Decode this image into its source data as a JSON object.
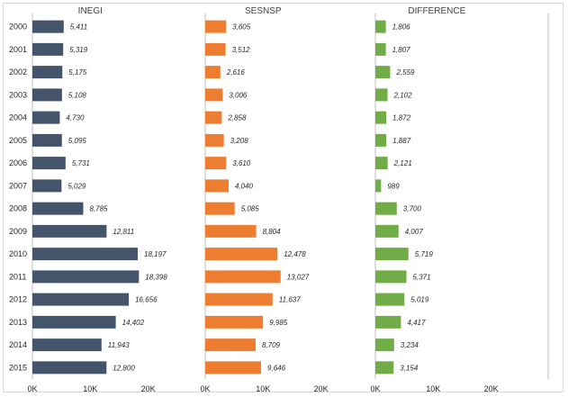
{
  "chart_data": {
    "type": "bar",
    "orientation": "horizontal",
    "categories": [
      "2000",
      "2001",
      "2002",
      "2003",
      "2004",
      "2005",
      "2006",
      "2007",
      "2008",
      "2009",
      "2010",
      "2011",
      "2012",
      "2013",
      "2014",
      "2015"
    ],
    "series": [
      {
        "name": "INEGI",
        "color": "#44546a",
        "values": [
          5411,
          5319,
          5175,
          5108,
          4730,
          5095,
          5731,
          5029,
          8785,
          12811,
          18197,
          18398,
          16656,
          14402,
          11943,
          12800
        ],
        "labels": [
          "5,411",
          "5,319",
          "5,175",
          "5,108",
          "4,730",
          "5,095",
          "5,731",
          "5,029",
          "8,785",
          "12,811",
          "18,197",
          "18,398",
          "16,656",
          "14,402",
          "11,943",
          "12,800"
        ]
      },
      {
        "name": "SESNSP",
        "color": "#ed7d31",
        "values": [
          3605,
          3512,
          2616,
          3006,
          2858,
          3208,
          3610,
          4040,
          5085,
          8804,
          12478,
          13027,
          11637,
          9985,
          8709,
          9646
        ],
        "labels": [
          "3,605",
          "3,512",
          "2,616",
          "3,006",
          "2,858",
          "3,208",
          "3,610",
          "4,040",
          "5,085",
          "8,804",
          "12,478",
          "13,027",
          "11,637",
          "9,985",
          "8,709",
          "9,646"
        ]
      },
      {
        "name": "DIFFERENCE",
        "color": "#70ad47",
        "values": [
          1806,
          1807,
          2559,
          2102,
          1872,
          1887,
          2121,
          989,
          3700,
          4007,
          5719,
          5371,
          5019,
          4417,
          3234,
          3154
        ],
        "labels": [
          "1,806",
          "1,807",
          "2,559",
          "2,102",
          "1,872",
          "1,887",
          "2,121",
          "989",
          "3,700",
          "4,007",
          "5,719",
          "5,371",
          "5,019",
          "4,417",
          "3,234",
          "3,154"
        ]
      }
    ],
    "xlim": [
      0,
      20000
    ],
    "x_ticks": [
      0,
      10000,
      20000
    ],
    "x_tick_labels": [
      "0K",
      "10K",
      "20K"
    ],
    "grid": false,
    "legend": "none"
  }
}
